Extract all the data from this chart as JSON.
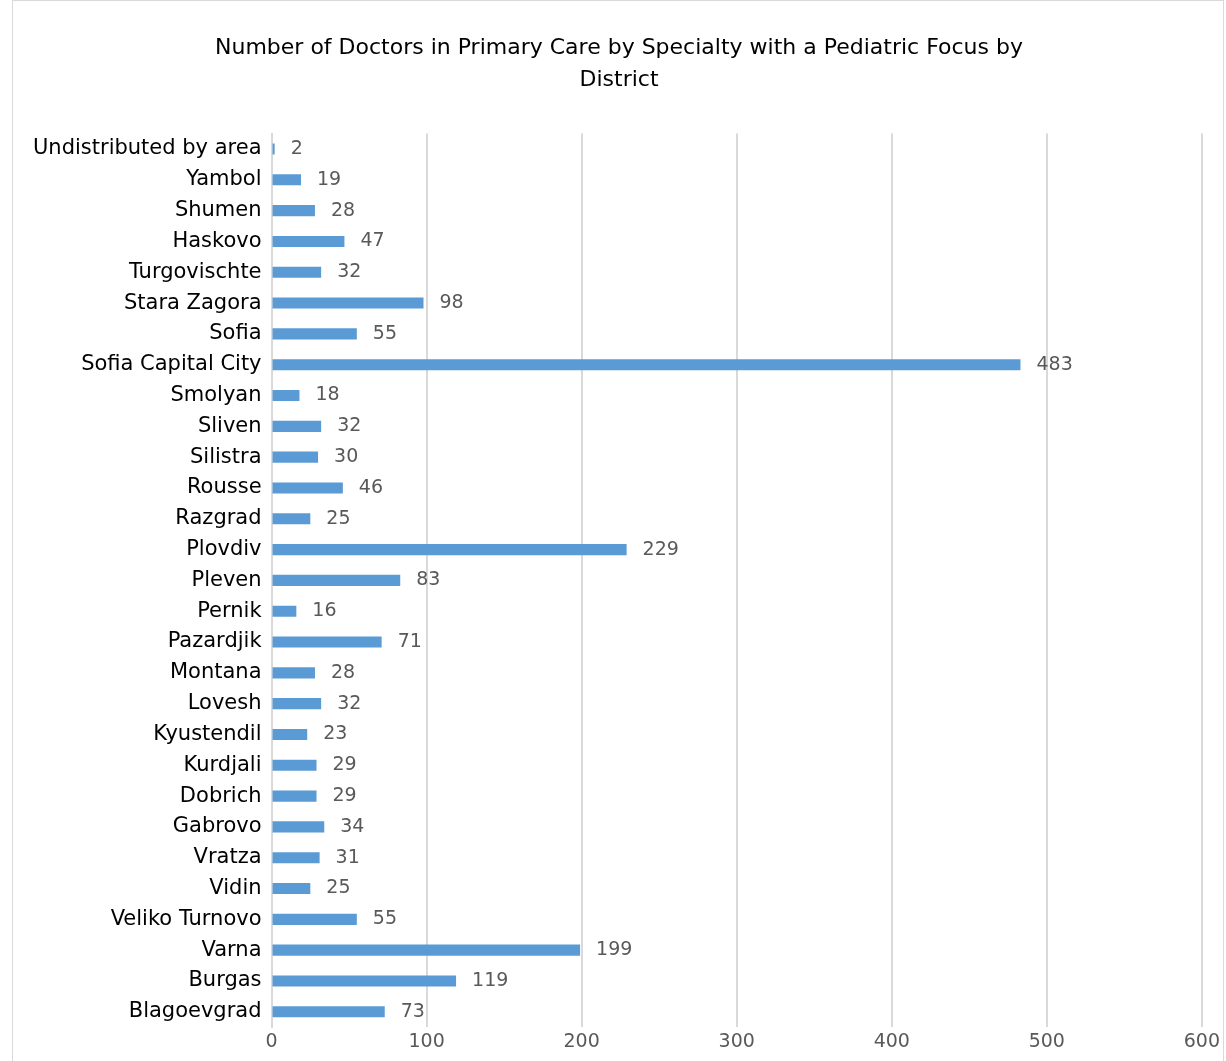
{
  "chart_data": {
    "type": "bar",
    "orientation": "horizontal",
    "title": "Number of Doctors in Primary Care by Specialty with a Pediatric Focus by District",
    "categories": [
      "Undistributed by area",
      "Yambol",
      "Shumen",
      "Haskovo",
      "Turgovischte",
      "Stara Zagora",
      "Sofia",
      "Sofia Capital City",
      "Smolyan",
      "Sliven",
      "Silistra",
      "Rousse",
      "Razgrad",
      "Plovdiv",
      "Pleven",
      "Pernik",
      "Pazardjik",
      "Montana",
      "Lovesh",
      "Kyustendil",
      "Kurdjali",
      "Dobrich",
      "Gabrovo",
      "Vratza",
      "Vidin",
      "Veliko Turnovo",
      "Varna",
      "Burgas",
      "Blagoevgrad"
    ],
    "values": [
      2,
      19,
      28,
      47,
      32,
      98,
      55,
      483,
      18,
      32,
      30,
      46,
      25,
      229,
      83,
      16,
      71,
      28,
      32,
      23,
      29,
      29,
      34,
      31,
      25,
      55,
      199,
      119,
      73
    ],
    "color": "#5b9bd5",
    "xlim": [
      0,
      600
    ],
    "xticks": [
      0,
      100,
      200,
      300,
      400,
      500,
      600
    ],
    "grid": "x",
    "data_labels": true
  }
}
